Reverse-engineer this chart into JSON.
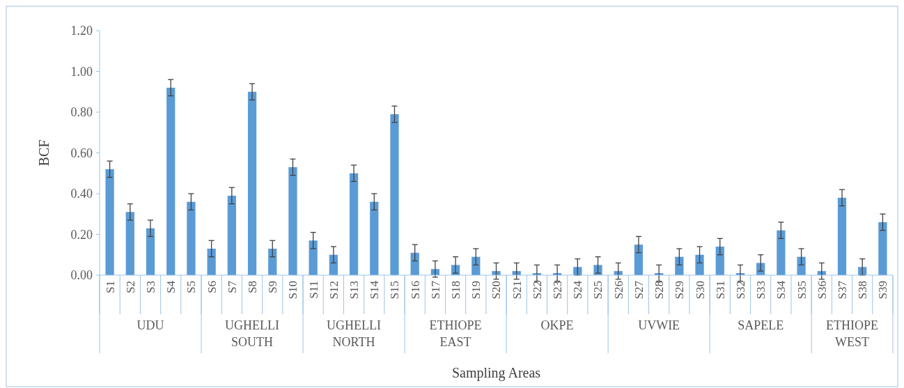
{
  "chart_data": {
    "type": "bar",
    "xlabel": "Sampling Areas",
    "ylabel": "BCF",
    "categories": [
      "S1",
      "S2",
      "S3",
      "S4",
      "S5",
      "S6",
      "S7",
      "S8",
      "S9",
      "S10",
      "S11",
      "S12",
      "S13",
      "S14",
      "S15",
      "S16",
      "S17",
      "S18",
      "S19",
      "S20",
      "S21",
      "S22",
      "S23",
      "S24",
      "S25",
      "S26",
      "S27",
      "S28",
      "S29",
      "S30",
      "S31",
      "S32",
      "S33",
      "S34",
      "S35",
      "S36",
      "S37",
      "S38",
      "S39"
    ],
    "values": [
      0.52,
      0.31,
      0.23,
      0.92,
      0.36,
      0.13,
      0.39,
      0.9,
      0.13,
      0.53,
      0.17,
      0.1,
      0.5,
      0.36,
      0.79,
      0.11,
      0.03,
      0.05,
      0.09,
      0.02,
      0.02,
      0.01,
      0.01,
      0.04,
      0.05,
      0.02,
      0.15,
      0.01,
      0.09,
      0.1,
      0.14,
      0.01,
      0.06,
      0.22,
      0.09,
      0.02,
      0.38,
      0.04,
      0.26
    ],
    "errors": [
      0.04,
      0.04,
      0.04,
      0.04,
      0.04,
      0.04,
      0.04,
      0.04,
      0.04,
      0.04,
      0.04,
      0.04,
      0.04,
      0.04,
      0.04,
      0.04,
      0.04,
      0.04,
      0.04,
      0.04,
      0.04,
      0.04,
      0.04,
      0.04,
      0.04,
      0.04,
      0.04,
      0.04,
      0.04,
      0.04,
      0.04,
      0.04,
      0.04,
      0.04,
      0.04,
      0.04,
      0.04,
      0.04,
      0.04
    ],
    "color": "#5b9bd5",
    "ylim": [
      0,
      1.2
    ],
    "yticks": [
      {
        "value": 0,
        "label": "0.00"
      },
      {
        "value": 0.2,
        "label": "0.20"
      },
      {
        "value": 0.4,
        "label": "0.40"
      },
      {
        "value": 0.6,
        "label": "0.60"
      },
      {
        "value": 0.8,
        "label": "0.80"
      },
      {
        "value": 1,
        "label": "1.00"
      },
      {
        "value": 1.2,
        "label": "1.20"
      }
    ],
    "annotations": [
      "UDU",
      "UGHELLI SOUTH",
      "UGHELLI NORTH",
      "ETHIOPE EAST",
      "OKPE",
      "UVWIE",
      "SAPELE",
      "ETHIOPE WEST"
    ]
  }
}
